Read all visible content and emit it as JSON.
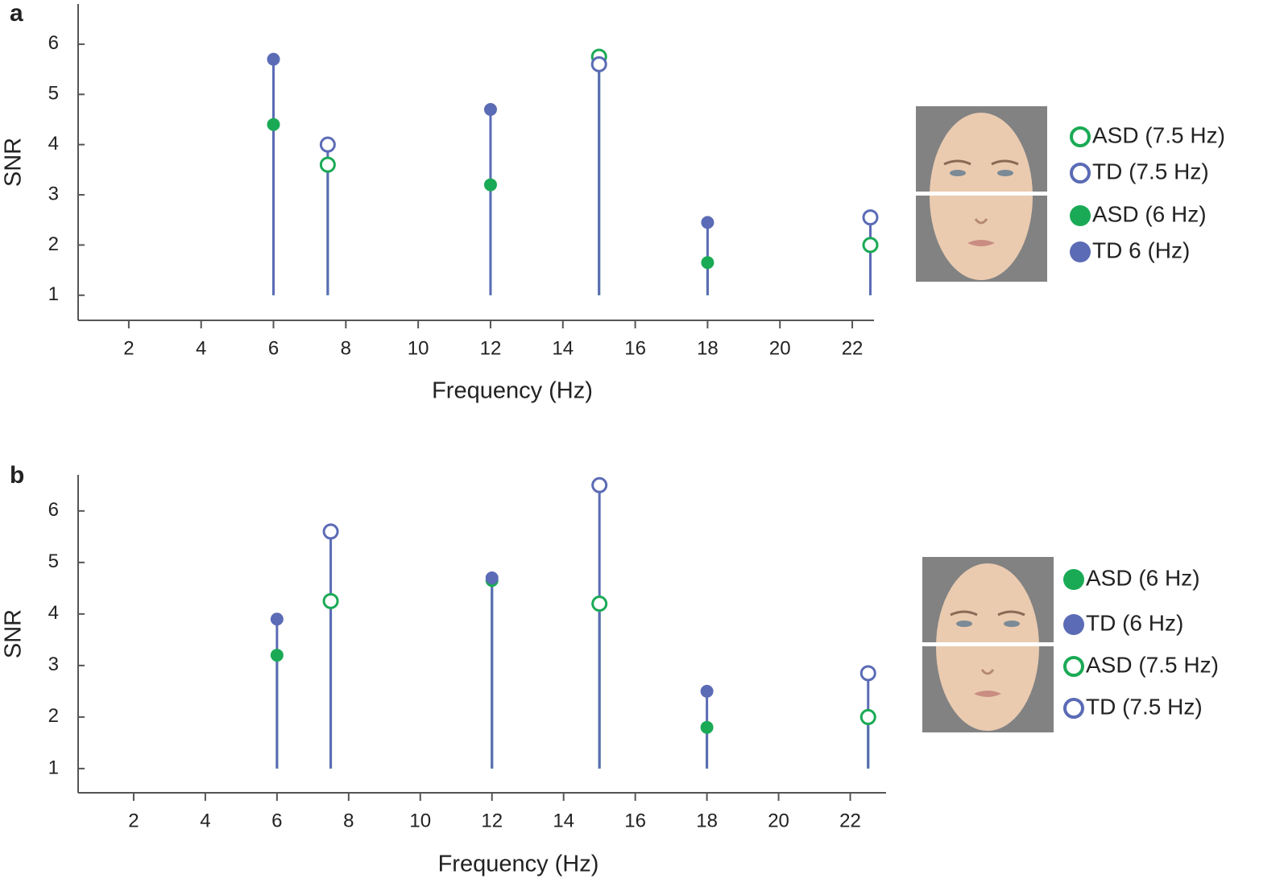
{
  "chart_data": [
    {
      "type": "stem",
      "label": "a",
      "xlabel": "Frequency (Hz)",
      "ylabel": "SNR",
      "xlim": [
        0.6,
        22.6
      ],
      "ylim": [
        0.5,
        6.8
      ],
      "xticks": [
        2,
        4,
        6,
        8,
        10,
        12,
        14,
        16,
        18,
        20,
        22
      ],
      "yticks": [
        1,
        2,
        3,
        4,
        5,
        6
      ],
      "series": [
        {
          "name": "ASD (7.5 Hz)",
          "color": "#1aaa55",
          "marker": "open",
          "x": [
            7.5,
            15,
            22.5
          ],
          "values": [
            3.6,
            5.75,
            2.0
          ]
        },
        {
          "name": "TD (7.5 Hz)",
          "color": "#5b6bb5",
          "marker": "open",
          "x": [
            7.5,
            15,
            22.5
          ],
          "values": [
            4.0,
            5.6,
            2.55
          ]
        },
        {
          "name": "ASD (6 Hz)",
          "color": "#1aaa55",
          "marker": "filled",
          "x": [
            6,
            12,
            18
          ],
          "values": [
            4.4,
            3.2,
            1.65
          ]
        },
        {
          "name": "TD 6 (Hz)",
          "color": "#5b6bb5",
          "marker": "filled",
          "x": [
            6,
            12,
            18
          ],
          "values": [
            5.7,
            4.7,
            2.45
          ]
        }
      ]
    },
    {
      "type": "stem",
      "label": "b",
      "xlabel": "Frequency (Hz)",
      "ylabel": "SNR",
      "xlim": [
        0.45,
        23.0
      ],
      "ylim": [
        0.53,
        6.7
      ],
      "xticks": [
        2,
        4,
        6,
        8,
        10,
        12,
        14,
        16,
        18,
        20,
        22
      ],
      "yticks": [
        1,
        2,
        3,
        4,
        5,
        6
      ],
      "series": [
        {
          "name": "ASD (6 Hz)",
          "color": "#1aaa55",
          "marker": "filled",
          "x": [
            6,
            12,
            18
          ],
          "values": [
            3.2,
            4.65,
            1.8
          ]
        },
        {
          "name": "TD (6 Hz)",
          "color": "#5b6bb5",
          "marker": "filled",
          "x": [
            6,
            12,
            18
          ],
          "values": [
            3.9,
            4.7,
            2.5
          ]
        },
        {
          "name": "ASD (7.5 Hz)",
          "color": "#1aaa55",
          "marker": "open",
          "x": [
            7.5,
            15,
            22.5
          ],
          "values": [
            4.25,
            4.2,
            2.0
          ]
        },
        {
          "name": "TD (7.5 Hz)",
          "color": "#5b6bb5",
          "marker": "open",
          "x": [
            7.5,
            15,
            22.5
          ],
          "values": [
            5.6,
            6.5,
            2.85
          ]
        }
      ]
    }
  ]
}
